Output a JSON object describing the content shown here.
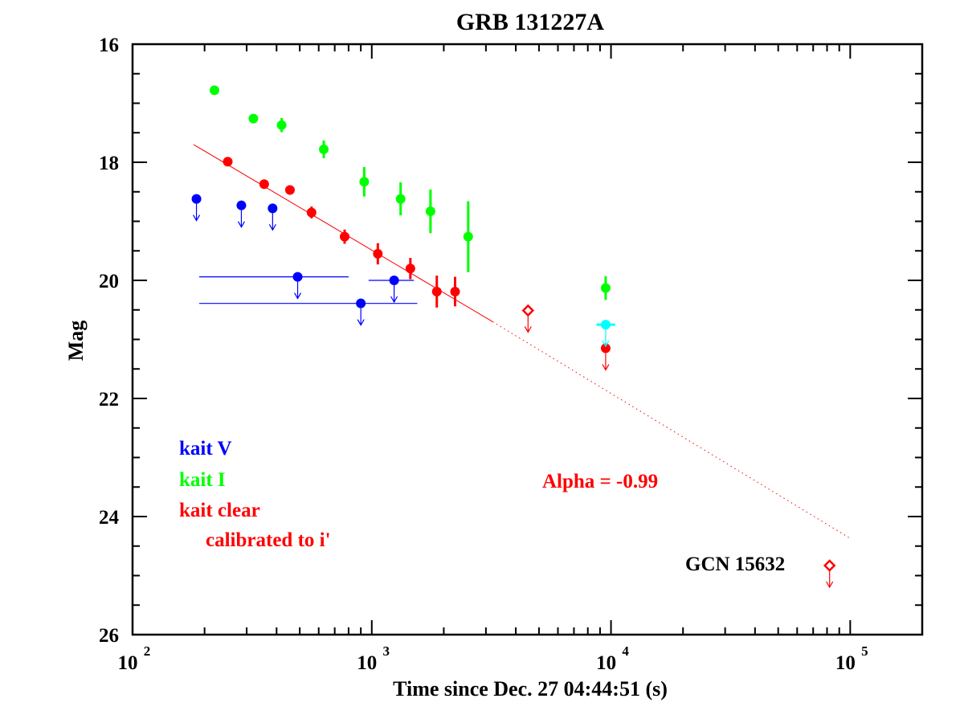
{
  "chart_data": {
    "type": "scatter",
    "title": "GRB 131227A",
    "xlabel": "Time since Dec. 27 04:44:51 (s)",
    "ylabel": "Mag",
    "x_scale": "log",
    "y_inverted": true,
    "xlim": [
      100,
      200000
    ],
    "ylim": [
      26,
      16
    ],
    "x_ticks": [
      {
        "value": 100,
        "base": "10",
        "exp": "2"
      },
      {
        "value": 1000,
        "base": "10",
        "exp": "3"
      },
      {
        "value": 10000,
        "base": "10",
        "exp": "4"
      },
      {
        "value": 100000,
        "base": "10",
        "exp": "5"
      }
    ],
    "y_ticks": [
      16,
      18,
      20,
      22,
      24,
      26
    ],
    "legend": {
      "placement": "bottom-left",
      "entries": [
        {
          "series": "kait V",
          "label": "kait V",
          "color": "#0000ff"
        },
        {
          "series": "kait I",
          "label": "kait I",
          "color": "#00ff00"
        },
        {
          "series": "kait clear",
          "label": "kait clear",
          "sublabel": "calibrated to i'",
          "color": "#ff0000"
        }
      ]
    },
    "series": [
      {
        "name": "kait V",
        "color": "#0000ff",
        "upper_limits": true,
        "points": [
          {
            "x": 185,
            "y": 18.62
          },
          {
            "x": 285,
            "y": 18.73
          },
          {
            "x": 385,
            "y": 18.78
          },
          {
            "x": 490,
            "y": 19.94,
            "xerr": [
              190,
              800
            ]
          },
          {
            "x": 1240,
            "y": 20.0,
            "xerr": [
              970,
              1500
            ]
          },
          {
            "x": 900,
            "y": 20.39,
            "xerr": [
              190,
              1550
            ]
          }
        ]
      },
      {
        "name": "kait I",
        "color": "#00ff00",
        "points": [
          {
            "x": 220,
            "y": 16.78,
            "yerr": 0.05
          },
          {
            "x": 320,
            "y": 17.26,
            "yerr": 0.05
          },
          {
            "x": 420,
            "y": 17.37,
            "yerr": 0.12
          },
          {
            "x": 630,
            "y": 17.78,
            "yerr": 0.15
          },
          {
            "x": 930,
            "y": 18.33,
            "yerr": 0.25
          },
          {
            "x": 1320,
            "y": 18.62,
            "yerr": 0.28
          },
          {
            "x": 1760,
            "y": 18.83,
            "yerr": 0.37
          },
          {
            "x": 2530,
            "y": 19.26,
            "yerr": 0.6
          },
          {
            "x": 9500,
            "y": 20.13,
            "yerr": 0.2
          }
        ]
      },
      {
        "name": "kait clear",
        "color": "#ff0000",
        "points": [
          {
            "x": 250,
            "y": 17.99,
            "yerr": 0.05
          },
          {
            "x": 355,
            "y": 18.37,
            "yerr": 0.05
          },
          {
            "x": 455,
            "y": 18.47,
            "yerr": 0.05
          },
          {
            "x": 560,
            "y": 18.85,
            "yerr": 0.1
          },
          {
            "x": 770,
            "y": 19.26,
            "yerr": 0.12
          },
          {
            "x": 1060,
            "y": 19.55,
            "yerr": 0.18
          },
          {
            "x": 1450,
            "y": 19.8,
            "yerr": 0.18
          },
          {
            "x": 1870,
            "y": 20.19,
            "yerr": 0.27
          },
          {
            "x": 2230,
            "y": 20.19,
            "yerr": 0.25
          }
        ]
      },
      {
        "name": "red open upper limits",
        "color": "#ff0000",
        "marker": "open-diamond",
        "upper_limits": true,
        "points": [
          {
            "x": 4500,
            "y": 20.51
          },
          {
            "x": 82000,
            "y": 24.83
          }
        ]
      },
      {
        "name": "red filled upper limit",
        "color": "#ff0000",
        "upper_limits": true,
        "points": [
          {
            "x": 9500,
            "y": 21.15
          }
        ]
      },
      {
        "name": "cyan point",
        "color": "#00ffff",
        "upper_limits": true,
        "points": [
          {
            "x": 9500,
            "y": 20.75,
            "xerr": [
              8700,
              10400
            ]
          }
        ]
      }
    ],
    "fit_line": {
      "color": "#ff0000",
      "slope_alpha": -0.99,
      "solid_from": [
        180,
        17.7
      ],
      "solid_to": [
        3200,
        20.7
      ],
      "dotted_to": [
        100000,
        24.37
      ]
    },
    "annotations": [
      {
        "text": "Alpha = -0.99",
        "x": 4500,
        "y": 23.7,
        "color": "#ff0000"
      },
      {
        "text": "GCN 15632",
        "x": 31000,
        "y": 24.8,
        "color": "#000000"
      }
    ]
  }
}
